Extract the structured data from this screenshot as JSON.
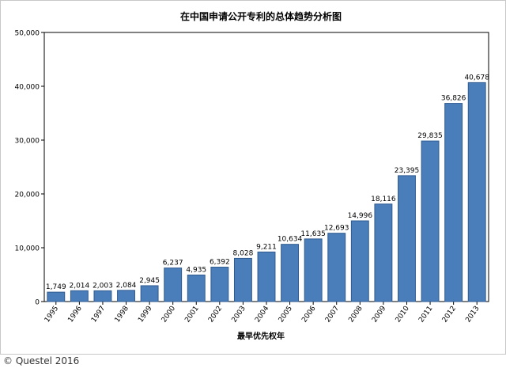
{
  "chart_data": {
    "type": "bar",
    "title": "在中国申请公开专利的总体趋势分析图",
    "xlabel": "最早优先权年",
    "ylabel": "",
    "categories": [
      "1995",
      "1996",
      "1997",
      "1998",
      "1999",
      "2000",
      "2001",
      "2002",
      "2003",
      "2004",
      "2005",
      "2006",
      "2007",
      "2008",
      "2009",
      "2010",
      "2011",
      "2012",
      "2013"
    ],
    "values": [
      1749,
      2014,
      2003,
      2084,
      2945,
      6237,
      4935,
      6392,
      8028,
      9211,
      10634,
      11635,
      12693,
      14996,
      18116,
      23395,
      29835,
      36826,
      40678
    ],
    "data_labels": [
      "1,749",
      "2,014",
      "2,003",
      "2,084",
      "2,945",
      "6,237",
      "4,935",
      "6,392",
      "8,028",
      "9,211",
      "10,634",
      "11,635",
      "12,693",
      "14,996",
      "18,116",
      "23,395",
      "29,835",
      "36,826",
      "40,678"
    ],
    "y_ticks": [
      0,
      10000,
      20000,
      30000,
      40000,
      50000
    ],
    "y_tick_labels": [
      "0",
      "10,000",
      "20,000",
      "30,000",
      "40,000",
      "50,000"
    ],
    "ylim": [
      0,
      50000
    ],
    "grid": true,
    "legend": "none",
    "bar_color": "#4a7ebb",
    "bar_edge_color": "#2f5a8f"
  },
  "footer": {
    "copyright": "© Questel 2016"
  }
}
